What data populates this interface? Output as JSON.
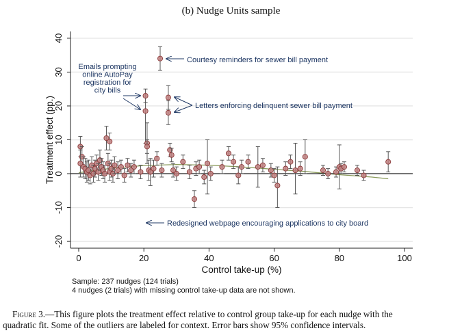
{
  "panel_title": "(b) Nudge Units sample",
  "notes": {
    "line1": "Sample: 237 nudges (124 trials)",
    "line2": "4 nudges (2 trials) with missing control take-up data are not shown."
  },
  "caption": {
    "lead": "Figure 3.",
    "dash": "—",
    "line1": "This figure plots the treatment effect relative to control group take-up for each nudge with the",
    "line2": "quadratic fit. Some of the outliers are labeled for context. Error bars show 95% confidence intervals."
  },
  "colors": {
    "point_fill": "#c08080",
    "point_stroke": "#8b3a3a",
    "error_bar": "#555555",
    "zero_line": "#222222",
    "fit_line": "#8a9a5b",
    "annotation_text": "#1f3864",
    "grid": "#e6e6e6"
  },
  "chart_data": {
    "type": "scatter",
    "title": "(b) Nudge Units sample",
    "xlabel": "Control take-up (%)",
    "ylabel": "Treatment effect (pp.)",
    "xlim": [
      0,
      100
    ],
    "ylim": [
      -22,
      42
    ],
    "xticks": [
      0,
      20,
      40,
      60,
      80,
      100
    ],
    "yticks": [
      -20,
      -10,
      0,
      10,
      20,
      30,
      40
    ],
    "grid": "horizontal",
    "fit": {
      "type": "quadratic",
      "x": [
        0,
        10,
        20,
        30,
        40,
        50,
        60,
        70,
        80,
        90,
        95
      ],
      "y": [
        0.3,
        1.6,
        2.4,
        2.7,
        2.5,
        2.0,
        1.3,
        0.6,
        -0.3,
        -1.0,
        -1.5
      ]
    },
    "points": [
      {
        "x": 0.5,
        "y": 8.0,
        "lo": 5.0,
        "hi": 11.0
      },
      {
        "x": 1.0,
        "y": 5.0,
        "lo": 2.0,
        "hi": 8.0
      },
      {
        "x": 0.5,
        "y": 3.0,
        "lo": -1.0,
        "hi": 7.0
      },
      {
        "x": 1.5,
        "y": 2.0,
        "lo": -1.0,
        "hi": 5.0
      },
      {
        "x": 2.0,
        "y": 1.5,
        "lo": -1.5,
        "hi": 4.5
      },
      {
        "x": 2.5,
        "y": 0.5,
        "lo": -2.5,
        "hi": 3.5
      },
      {
        "x": 3.0,
        "y": 1.0,
        "lo": -2.0,
        "hi": 4.0
      },
      {
        "x": 3.5,
        "y": -0.5,
        "lo": -3.0,
        "hi": 2.0
      },
      {
        "x": 4.0,
        "y": 2.5,
        "lo": 0.0,
        "hi": 5.0
      },
      {
        "x": 4.5,
        "y": 0.0,
        "lo": -2.5,
        "hi": 2.5
      },
      {
        "x": 5.0,
        "y": 1.5,
        "lo": -1.0,
        "hi": 4.0
      },
      {
        "x": 5.5,
        "y": 3.0,
        "lo": 0.5,
        "hi": 5.5
      },
      {
        "x": 6.0,
        "y": 0.5,
        "lo": -2.0,
        "hi": 3.0
      },
      {
        "x": 6.5,
        "y": 4.0,
        "lo": 1.0,
        "hi": 7.0
      },
      {
        "x": 7.0,
        "y": 2.0,
        "lo": -0.5,
        "hi": 4.5
      },
      {
        "x": 7.5,
        "y": 1.0,
        "lo": -1.5,
        "hi": 3.5
      },
      {
        "x": 8.0,
        "y": 0.0,
        "lo": -2.5,
        "hi": 2.5
      },
      {
        "x": 8.5,
        "y": 10.5,
        "lo": 7.0,
        "hi": 14.0
      },
      {
        "x": 9.0,
        "y": 3.0,
        "lo": 0.0,
        "hi": 6.0
      },
      {
        "x": 9.5,
        "y": 9.5,
        "lo": 7.0,
        "hi": 12.0
      },
      {
        "x": 9.5,
        "y": 0.5,
        "lo": -2.0,
        "hi": 3.0
      },
      {
        "x": 10.0,
        "y": 1.5,
        "lo": -1.0,
        "hi": 4.0
      },
      {
        "x": 10.5,
        "y": 0.0,
        "lo": -2.5,
        "hi": 2.5
      },
      {
        "x": 11.0,
        "y": 2.5,
        "lo": 0.0,
        "hi": 5.0
      },
      {
        "x": 12.0,
        "y": 1.0,
        "lo": -1.5,
        "hi": 3.5
      },
      {
        "x": 13.0,
        "y": 2.0,
        "lo": 0.0,
        "hi": 4.0
      },
      {
        "x": 14.0,
        "y": -0.5,
        "lo": -2.5,
        "hi": 1.5
      },
      {
        "x": 15.0,
        "y": 2.5,
        "lo": 0.5,
        "hi": 4.5
      },
      {
        "x": 16.0,
        "y": 1.0,
        "lo": -1.0,
        "hi": 3.0
      },
      {
        "x": 17.0,
        "y": 2.0,
        "lo": 0.0,
        "hi": 4.0
      },
      {
        "x": 19.0,
        "y": 0.5,
        "lo": -1.5,
        "hi": 2.5
      },
      {
        "x": 20.5,
        "y": 23.0,
        "lo": 21.0,
        "hi": 25.0
      },
      {
        "x": 20.5,
        "y": 18.5,
        "lo": 9.0,
        "hi": 21.0
      },
      {
        "x": 21.0,
        "y": 9.0,
        "lo": 3.0,
        "hi": 15.0
      },
      {
        "x": 21.0,
        "y": 8.0,
        "lo": 6.0,
        "hi": 10.0
      },
      {
        "x": 21.5,
        "y": 1.0,
        "lo": -2.0,
        "hi": 4.0
      },
      {
        "x": 22.0,
        "y": 0.5,
        "lo": -3.5,
        "hi": 4.5
      },
      {
        "x": 23.0,
        "y": 1.5,
        "lo": -1.0,
        "hi": 4.0
      },
      {
        "x": 24.0,
        "y": 4.5,
        "lo": 2.5,
        "hi": 6.5
      },
      {
        "x": 25.0,
        "y": 34.0,
        "lo": 30.5,
        "hi": 37.5
      },
      {
        "x": 25.5,
        "y": 1.0,
        "lo": -1.0,
        "hi": 3.0
      },
      {
        "x": 27.5,
        "y": 22.5,
        "lo": 19.0,
        "hi": 26.0
      },
      {
        "x": 27.5,
        "y": 18.0,
        "lo": 14.5,
        "hi": 21.5
      },
      {
        "x": 28.0,
        "y": 7.0,
        "lo": 5.0,
        "hi": 9.0
      },
      {
        "x": 28.5,
        "y": 5.5,
        "lo": 3.5,
        "hi": 7.5
      },
      {
        "x": 29.0,
        "y": 1.0,
        "lo": -1.0,
        "hi": 3.0
      },
      {
        "x": 30.0,
        "y": 0.0,
        "lo": -2.0,
        "hi": 2.0
      },
      {
        "x": 32.0,
        "y": 3.5,
        "lo": 1.5,
        "hi": 5.5
      },
      {
        "x": 34.0,
        "y": 0.5,
        "lo": -1.5,
        "hi": 2.5
      },
      {
        "x": 35.5,
        "y": -7.5,
        "lo": -10.0,
        "hi": -5.0
      },
      {
        "x": 36.0,
        "y": 1.5,
        "lo": -0.5,
        "hi": 3.5
      },
      {
        "x": 37.0,
        "y": 2.0,
        "lo": 0.0,
        "hi": 4.0
      },
      {
        "x": 38.5,
        "y": -1.0,
        "lo": -3.0,
        "hi": 1.0
      },
      {
        "x": 39.5,
        "y": 3.0,
        "lo": -6.0,
        "hi": 10.0
      },
      {
        "x": 40.5,
        "y": 0.0,
        "lo": -2.0,
        "hi": 2.0
      },
      {
        "x": 44.0,
        "y": 2.0,
        "lo": 0.0,
        "hi": 4.0
      },
      {
        "x": 46.0,
        "y": 6.0,
        "lo": 4.0,
        "hi": 8.0
      },
      {
        "x": 47.5,
        "y": 3.5,
        "lo": 1.5,
        "hi": 5.5
      },
      {
        "x": 49.0,
        "y": -0.5,
        "lo": -3.0,
        "hi": 2.0
      },
      {
        "x": 50.0,
        "y": 2.0,
        "lo": 0.0,
        "hi": 4.0
      },
      {
        "x": 52.0,
        "y": 3.5,
        "lo": 1.5,
        "hi": 5.5
      },
      {
        "x": 55.0,
        "y": 2.0,
        "lo": -4.0,
        "hi": 8.0
      },
      {
        "x": 56.5,
        "y": 2.5,
        "lo": 0.5,
        "hi": 4.5
      },
      {
        "x": 59.0,
        "y": 1.0,
        "lo": -1.0,
        "hi": 3.0
      },
      {
        "x": 60.0,
        "y": -0.5,
        "lo": -2.5,
        "hi": 1.5
      },
      {
        "x": 61.0,
        "y": -3.5,
        "lo": -10.0,
        "hi": 2.0
      },
      {
        "x": 63.5,
        "y": 1.5,
        "lo": -0.5,
        "hi": 3.5
      },
      {
        "x": 65.0,
        "y": 3.5,
        "lo": 1.5,
        "hi": 5.5
      },
      {
        "x": 66.5,
        "y": 1.0,
        "lo": -6.0,
        "hi": 9.0
      },
      {
        "x": 68.0,
        "y": 1.5,
        "lo": -0.5,
        "hi": 3.5
      },
      {
        "x": 69.5,
        "y": 5.0,
        "lo": 0.0,
        "hi": 10.0
      },
      {
        "x": 75.0,
        "y": 1.0,
        "lo": -0.5,
        "hi": 2.5
      },
      {
        "x": 76.5,
        "y": 0.0,
        "lo": -1.5,
        "hi": 1.5
      },
      {
        "x": 79.0,
        "y": 0.5,
        "lo": -1.0,
        "hi": 2.0
      },
      {
        "x": 80.0,
        "y": 2.0,
        "lo": -4.5,
        "hi": 8.5
      },
      {
        "x": 80.5,
        "y": 1.5,
        "lo": 0.0,
        "hi": 3.0
      },
      {
        "x": 81.5,
        "y": 2.0,
        "lo": 0.5,
        "hi": 3.5
      },
      {
        "x": 85.5,
        "y": 1.0,
        "lo": -0.5,
        "hi": 2.5
      },
      {
        "x": 87.5,
        "y": -0.5,
        "lo": -2.0,
        "hi": 1.0
      },
      {
        "x": 95.0,
        "y": 3.5,
        "lo": 0.5,
        "hi": 6.5
      }
    ],
    "annotations": [
      {
        "text": "Courtesy reminders for sewer bill payment",
        "lines": [
          "Courtesy reminders for sewer bill payment"
        ],
        "lx": 273,
        "ly": 91,
        "anchor": "start",
        "arrow": [
          [
            269,
            86
          ],
          [
            243,
            86
          ]
        ]
      },
      {
        "text": "Emails prompting online AutoPay registration for city bills",
        "lines": [
          "Emails prompting",
          "online AutoPay",
          "registration for",
          "city bills"
        ],
        "lx": 157,
        "ly": 101,
        "anchor": "middle",
        "arrow": [
          [
            180,
            140
          ],
          [
            205,
            140
          ]
        ],
        "arrow2": [
          [
            180,
            144
          ],
          [
            205,
            160
          ]
        ]
      },
      {
        "text": "Letters enforcing delinquent sewer bill payment",
        "lines": [
          "Letters enforcing delinquent sewer bill payment"
        ],
        "lx": 285,
        "ly": 158,
        "anchor": "start",
        "arrow": [
          [
            281,
            154
          ],
          [
            255,
            142
          ]
        ],
        "arrow2": [
          [
            281,
            154
          ],
          [
            255,
            164
          ]
        ]
      },
      {
        "text": "Redesigned webpage encouraging applications to city board",
        "lines": [
          "Redesigned webpage encouraging applications to city board"
        ],
        "lx": 244,
        "ly": 330,
        "anchor": "start",
        "arrow": [
          [
            240,
            326
          ],
          [
            214,
            326
          ]
        ]
      }
    ]
  }
}
